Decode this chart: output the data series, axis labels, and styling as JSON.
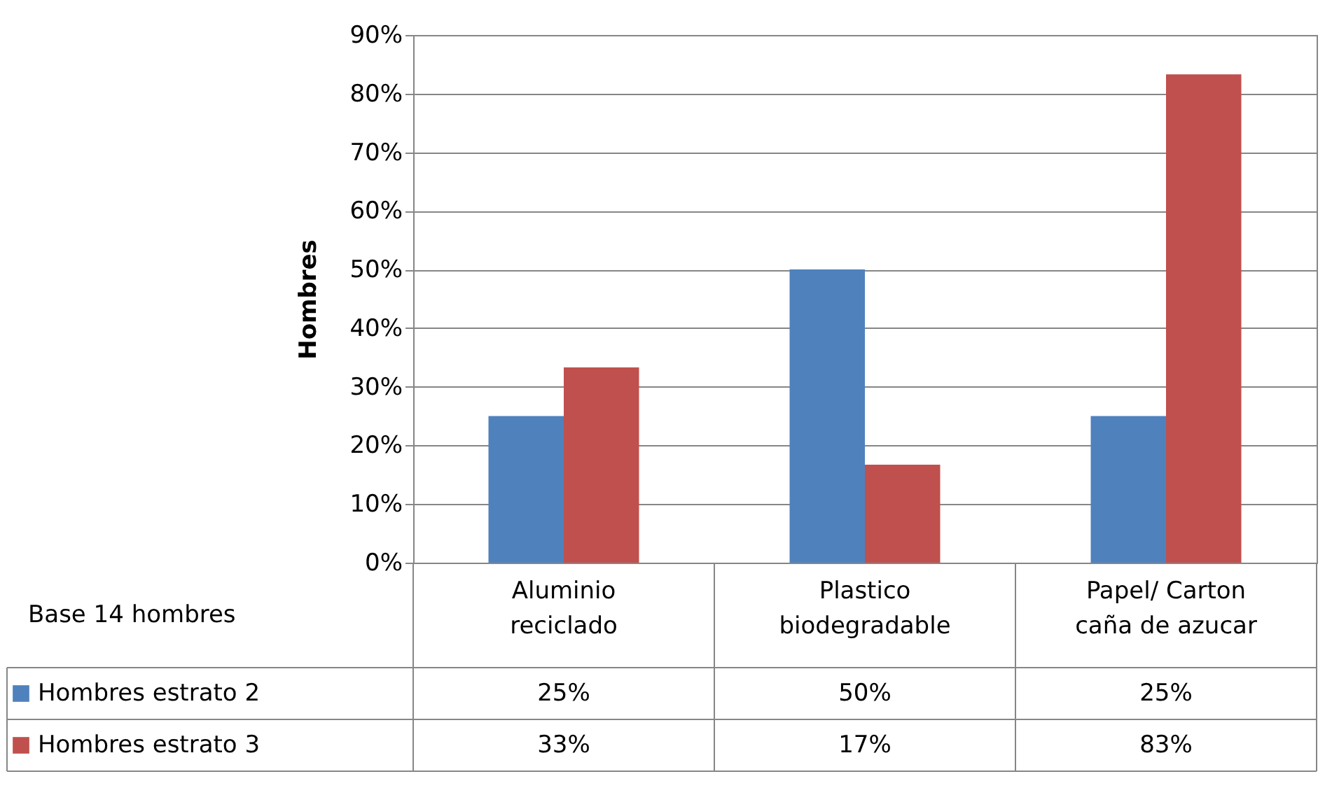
{
  "chart_data": {
    "type": "bar",
    "ylabel": "Hombres",
    "categories": [
      "Aluminio\nreciclado",
      "Plastico\nbiodegradable",
      "Papel/ Carton\ncaña de azucar"
    ],
    "series": [
      {
        "name": "Hombres estrato 2",
        "color": "#4f81bd",
        "values": [
          25,
          50,
          25
        ],
        "value_labels": [
          "25%",
          "50%",
          "25%"
        ]
      },
      {
        "name": "Hombres estrato 3",
        "color": "#c0504d",
        "values": [
          33.3,
          16.7,
          83.3
        ],
        "value_labels": [
          "33%",
          "17%",
          "83%"
        ]
      }
    ],
    "ylim": [
      0,
      90
    ],
    "yticks": [
      {
        "value": 0,
        "label": "0%"
      },
      {
        "value": 10,
        "label": "10%"
      },
      {
        "value": 20,
        "label": "20%"
      },
      {
        "value": 30,
        "label": "30%"
      },
      {
        "value": 40,
        "label": "40%"
      },
      {
        "value": 50,
        "label": "50%"
      },
      {
        "value": 60,
        "label": "60%"
      },
      {
        "value": 70,
        "label": "70%"
      },
      {
        "value": 80,
        "label": "80%"
      },
      {
        "value": 90,
        "label": "90%"
      }
    ],
    "grid": "y",
    "legend": "bottom",
    "annotations": [
      "Base 14 hombres"
    ]
  }
}
